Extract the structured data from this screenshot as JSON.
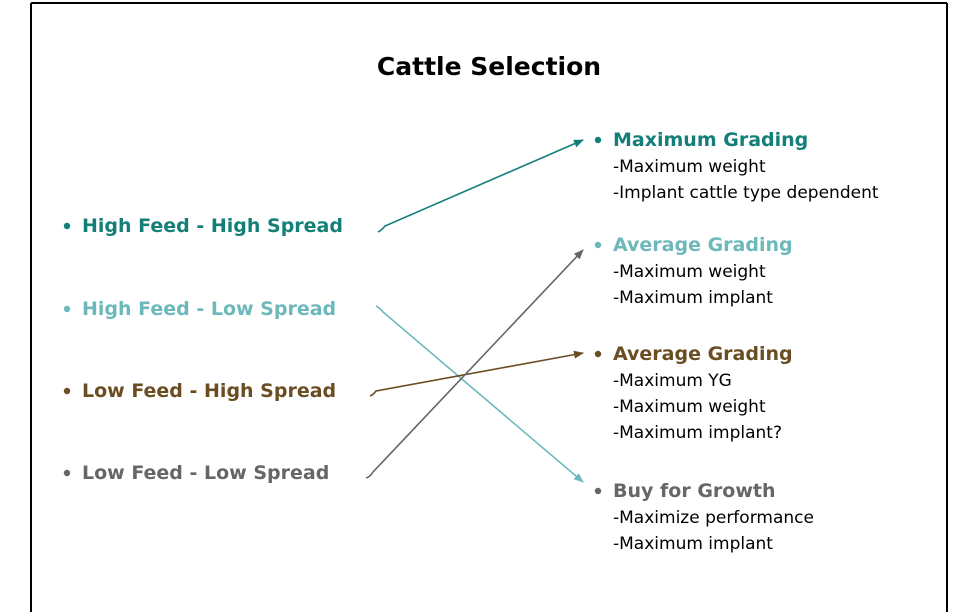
{
  "title": "Cattle Selection",
  "left": [
    {
      "label": "High Feed - High Spread"
    },
    {
      "label": "High Feed - Low Spread"
    },
    {
      "label": "Low Feed - High Spread"
    },
    {
      "label": "Low Feed - Low Spread"
    }
  ],
  "right": [
    {
      "title": "Maximum Grading",
      "lines": [
        "-Maximum weight",
        "-Implant cattle type dependent"
      ]
    },
    {
      "title": "Average Grading",
      "lines": [
        "-Maximum weight",
        "-Maximum implant"
      ]
    },
    {
      "title": "Average Grading",
      "lines": [
        "-Maximum YG",
        "-Maximum weight",
        "-Maximum implant?"
      ]
    },
    {
      "title": "Buy for Growth",
      "lines": [
        "-Maximize performance",
        "-Maximum implant"
      ]
    }
  ]
}
